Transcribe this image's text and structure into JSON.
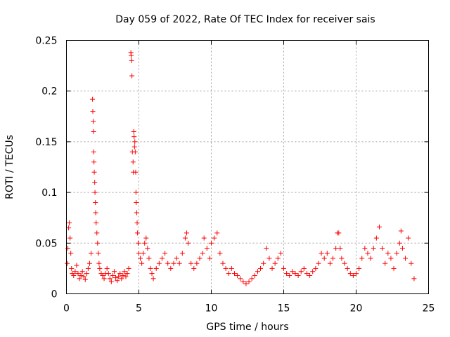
{
  "chart_data": {
    "type": "scatter",
    "title": "Day 059 of 2022, Rate Of TEC Index for receiver sais",
    "xlabel": "GPS time / hours",
    "ylabel": "ROTI / TECUs",
    "xlim": [
      0,
      25
    ],
    "ylim": [
      0,
      0.25
    ],
    "x_ticks": [
      0,
      5,
      10,
      15,
      20,
      25
    ],
    "x_tick_labels": [
      "0",
      "5",
      "10",
      "15",
      "20",
      "25"
    ],
    "y_ticks": [
      0,
      0.05,
      0.1,
      0.15,
      0.2,
      0.25
    ],
    "y_tick_labels": [
      "0",
      "0.05",
      "0.1",
      "0.15",
      "0.2",
      "0.25"
    ],
    "grid": true,
    "marker": "+",
    "color": "#ff0000",
    "series": [
      {
        "name": "ROTI",
        "points": [
          [
            0.05,
            0.03
          ],
          [
            0.1,
            0.045
          ],
          [
            0.15,
            0.065
          ],
          [
            0.2,
            0.07
          ],
          [
            0.25,
            0.055
          ],
          [
            0.3,
            0.04
          ],
          [
            0.35,
            0.025
          ],
          [
            0.4,
            0.02
          ],
          [
            0.5,
            0.018
          ],
          [
            0.6,
            0.022
          ],
          [
            0.7,
            0.028
          ],
          [
            0.8,
            0.02
          ],
          [
            0.9,
            0.015
          ],
          [
            1.0,
            0.018
          ],
          [
            1.1,
            0.022
          ],
          [
            1.2,
            0.017
          ],
          [
            1.3,
            0.014
          ],
          [
            1.4,
            0.02
          ],
          [
            1.5,
            0.025
          ],
          [
            1.6,
            0.03
          ],
          [
            1.7,
            0.04
          ],
          [
            1.8,
            0.192
          ],
          [
            1.82,
            0.18
          ],
          [
            1.85,
            0.17
          ],
          [
            1.87,
            0.16
          ],
          [
            1.88,
            0.14
          ],
          [
            1.9,
            0.13
          ],
          [
            1.92,
            0.12
          ],
          [
            1.95,
            0.11
          ],
          [
            1.97,
            0.1
          ],
          [
            2.0,
            0.09
          ],
          [
            2.02,
            0.08
          ],
          [
            2.05,
            0.07
          ],
          [
            2.1,
            0.06
          ],
          [
            2.15,
            0.05
          ],
          [
            2.2,
            0.04
          ],
          [
            2.25,
            0.03
          ],
          [
            2.3,
            0.025
          ],
          [
            2.4,
            0.02
          ],
          [
            2.5,
            0.018
          ],
          [
            2.6,
            0.015
          ],
          [
            2.7,
            0.02
          ],
          [
            2.8,
            0.025
          ],
          [
            2.9,
            0.02
          ],
          [
            3.0,
            0.015
          ],
          [
            3.1,
            0.012
          ],
          [
            3.2,
            0.018
          ],
          [
            3.3,
            0.022
          ],
          [
            3.4,
            0.016
          ],
          [
            3.5,
            0.013
          ],
          [
            3.6,
            0.017
          ],
          [
            3.7,
            0.02
          ],
          [
            3.8,
            0.015
          ],
          [
            3.9,
            0.018
          ],
          [
            4.0,
            0.022
          ],
          [
            4.1,
            0.017
          ],
          [
            4.2,
            0.02
          ],
          [
            4.3,
            0.025
          ],
          [
            4.45,
            0.238
          ],
          [
            4.47,
            0.235
          ],
          [
            4.5,
            0.23
          ],
          [
            4.52,
            0.215
          ],
          [
            4.55,
            0.14
          ],
          [
            4.6,
            0.13
          ],
          [
            4.62,
            0.12
          ],
          [
            4.65,
            0.16
          ],
          [
            4.67,
            0.155
          ],
          [
            4.7,
            0.145
          ],
          [
            4.72,
            0.15
          ],
          [
            4.75,
            0.14
          ],
          [
            4.78,
            0.12
          ],
          [
            4.8,
            0.1
          ],
          [
            4.82,
            0.09
          ],
          [
            4.85,
            0.08
          ],
          [
            4.88,
            0.07
          ],
          [
            4.9,
            0.06
          ],
          [
            4.95,
            0.05
          ],
          [
            5.0,
            0.04
          ],
          [
            5.1,
            0.035
          ],
          [
            5.2,
            0.03
          ],
          [
            5.3,
            0.04
          ],
          [
            5.4,
            0.05
          ],
          [
            5.5,
            0.055
          ],
          [
            5.6,
            0.045
          ],
          [
            5.7,
            0.035
          ],
          [
            5.8,
            0.025
          ],
          [
            5.9,
            0.02
          ],
          [
            6.0,
            0.015
          ],
          [
            6.2,
            0.025
          ],
          [
            6.4,
            0.03
          ],
          [
            6.6,
            0.035
          ],
          [
            6.8,
            0.04
          ],
          [
            7.0,
            0.03
          ],
          [
            7.2,
            0.025
          ],
          [
            7.4,
            0.03
          ],
          [
            7.6,
            0.035
          ],
          [
            7.8,
            0.03
          ],
          [
            8.0,
            0.04
          ],
          [
            8.2,
            0.055
          ],
          [
            8.3,
            0.06
          ],
          [
            8.4,
            0.05
          ],
          [
            8.6,
            0.03
          ],
          [
            8.8,
            0.025
          ],
          [
            9.0,
            0.03
          ],
          [
            9.2,
            0.035
          ],
          [
            9.4,
            0.04
          ],
          [
            9.5,
            0.055
          ],
          [
            9.7,
            0.045
          ],
          [
            9.9,
            0.035
          ],
          [
            10.0,
            0.05
          ],
          [
            10.2,
            0.055
          ],
          [
            10.4,
            0.06
          ],
          [
            10.6,
            0.04
          ],
          [
            10.8,
            0.03
          ],
          [
            11.0,
            0.025
          ],
          [
            11.2,
            0.02
          ],
          [
            11.4,
            0.025
          ],
          [
            11.6,
            0.02
          ],
          [
            11.8,
            0.018
          ],
          [
            12.0,
            0.015
          ],
          [
            12.2,
            0.012
          ],
          [
            12.4,
            0.01
          ],
          [
            12.6,
            0.012
          ],
          [
            12.8,
            0.015
          ],
          [
            13.0,
            0.018
          ],
          [
            13.2,
            0.022
          ],
          [
            13.4,
            0.025
          ],
          [
            13.6,
            0.03
          ],
          [
            13.8,
            0.045
          ],
          [
            14.0,
            0.035
          ],
          [
            14.2,
            0.025
          ],
          [
            14.4,
            0.03
          ],
          [
            14.6,
            0.035
          ],
          [
            14.8,
            0.04
          ],
          [
            15.0,
            0.025
          ],
          [
            15.2,
            0.02
          ],
          [
            15.4,
            0.018
          ],
          [
            15.6,
            0.022
          ],
          [
            15.8,
            0.02
          ],
          [
            16.0,
            0.018
          ],
          [
            16.2,
            0.022
          ],
          [
            16.4,
            0.025
          ],
          [
            16.6,
            0.02
          ],
          [
            16.8,
            0.018
          ],
          [
            17.0,
            0.022
          ],
          [
            17.2,
            0.025
          ],
          [
            17.4,
            0.03
          ],
          [
            17.6,
            0.04
          ],
          [
            17.8,
            0.035
          ],
          [
            18.0,
            0.04
          ],
          [
            18.2,
            0.03
          ],
          [
            18.4,
            0.035
          ],
          [
            18.6,
            0.045
          ],
          [
            18.7,
            0.06
          ],
          [
            18.8,
            0.06
          ],
          [
            18.9,
            0.045
          ],
          [
            19.0,
            0.035
          ],
          [
            19.2,
            0.03
          ],
          [
            19.4,
            0.025
          ],
          [
            19.6,
            0.02
          ],
          [
            19.8,
            0.018
          ],
          [
            20.0,
            0.02
          ],
          [
            20.2,
            0.025
          ],
          [
            20.4,
            0.035
          ],
          [
            20.6,
            0.045
          ],
          [
            20.8,
            0.04
          ],
          [
            21.0,
            0.035
          ],
          [
            21.2,
            0.045
          ],
          [
            21.4,
            0.055
          ],
          [
            21.6,
            0.066
          ],
          [
            21.8,
            0.045
          ],
          [
            22.0,
            0.03
          ],
          [
            22.2,
            0.04
          ],
          [
            22.4,
            0.035
          ],
          [
            22.6,
            0.025
          ],
          [
            22.8,
            0.04
          ],
          [
            23.0,
            0.05
          ],
          [
            23.1,
            0.062
          ],
          [
            23.2,
            0.045
          ],
          [
            23.4,
            0.035
          ],
          [
            23.6,
            0.055
          ],
          [
            23.8,
            0.03
          ],
          [
            24.0,
            0.015
          ]
        ]
      }
    ]
  }
}
